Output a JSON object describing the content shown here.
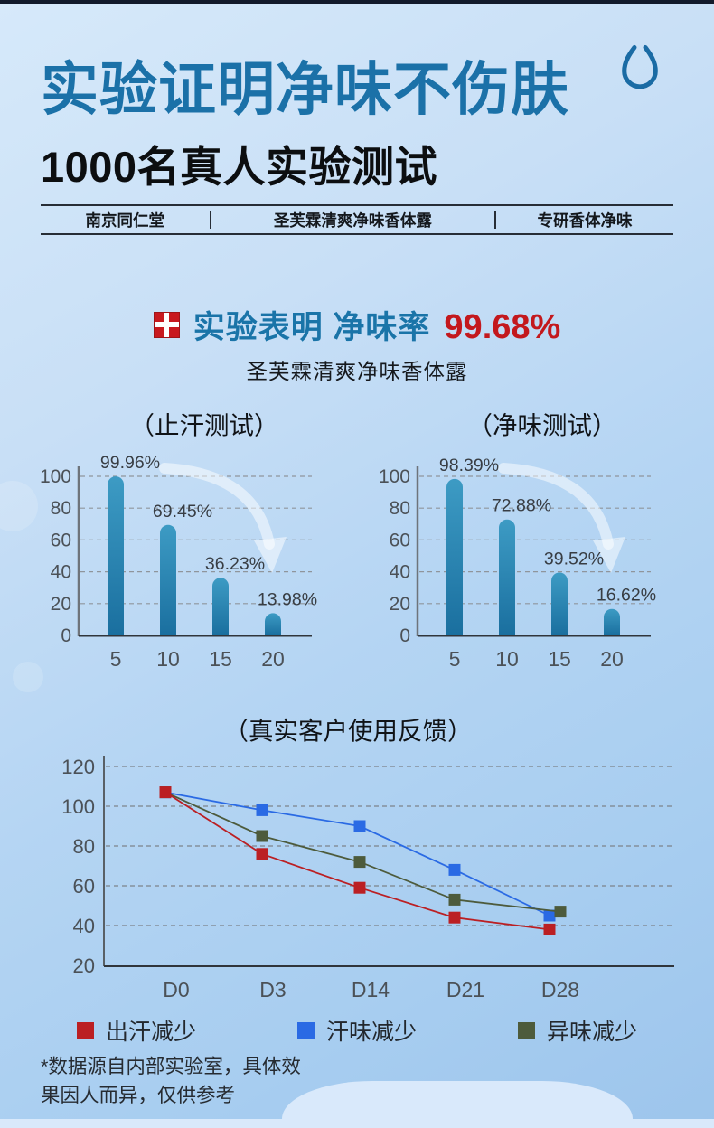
{
  "theme": {
    "background_top": "#d6e9fa",
    "background_bottom": "#9dc5ec",
    "top_bar": "#121a2b",
    "title_blue": "#1b71a8",
    "accent_red": "#c3181d",
    "bar_fill_top": "#3d9bc4",
    "bar_fill_bottom": "#1a6f9f",
    "wave": "#d9e9fb"
  },
  "header": {
    "title": "实验证明净味不伤肤",
    "subtitle": "1000名真人实验测试",
    "droplet_icon": "water-drop-outline-icon"
  },
  "brand_bar": {
    "items": [
      "南京同仁堂",
      "圣芙霖清爽净味香体露",
      "专研香体净味"
    ]
  },
  "claim": {
    "icon": "red-cross-badge-icon",
    "highlight_prefix": "实验表明 净味率",
    "highlight_value": "99.68%",
    "product_name": "圣芙霖清爽净味香体露"
  },
  "footnote": {
    "line1": "*数据源自内部实验室，具体效",
    "line2": "果因人而异，仅供参考"
  },
  "chart_data": [
    {
      "type": "bar",
      "title": "（止汗测试）",
      "categories": [
        "5",
        "10",
        "15",
        "20"
      ],
      "values": [
        99.96,
        69.45,
        36.23,
        13.98
      ],
      "value_labels": [
        "99.96%",
        "69.45%",
        "36.23%",
        "13.98%"
      ],
      "ylim": [
        0,
        100
      ],
      "yticks": [
        0,
        20,
        40,
        60,
        80,
        100
      ],
      "grid": "dashed-horizontal",
      "decoration": "white-curved-arrow-down"
    },
    {
      "type": "bar",
      "title": "（净味测试）",
      "categories": [
        "5",
        "10",
        "15",
        "20"
      ],
      "values": [
        98.39,
        72.88,
        39.52,
        16.62
      ],
      "value_labels": [
        "98.39%",
        "72.88%",
        "39.52%",
        "16.62%"
      ],
      "ylim": [
        0,
        100
      ],
      "yticks": [
        0,
        20,
        40,
        60,
        80,
        100
      ],
      "grid": "dashed-horizontal",
      "decoration": "white-curved-arrow-down"
    },
    {
      "type": "line",
      "title": "（真实客户使用反馈）",
      "x": [
        "D0",
        "D3",
        "D14",
        "D21",
        "D28"
      ],
      "series": [
        {
          "name": "出汗减少",
          "color": "#bb1f23",
          "values": [
            107,
            76,
            59,
            44,
            38
          ]
        },
        {
          "name": "汗味减少",
          "color": "#2a6ae4",
          "values": [
            107,
            98,
            90,
            68,
            45
          ]
        },
        {
          "name": "异味减少",
          "color": "#4d5b3c",
          "values": [
            107,
            85,
            72,
            53,
            47
          ],
          "x_offsets": [
            0,
            0,
            0,
            0,
            12
          ]
        }
      ],
      "ylim": [
        20,
        120
      ],
      "yticks": [
        20,
        40,
        60,
        80,
        100,
        120
      ],
      "grid": "dashed-horizontal",
      "marker": "square",
      "legend_position": "bottom"
    }
  ]
}
